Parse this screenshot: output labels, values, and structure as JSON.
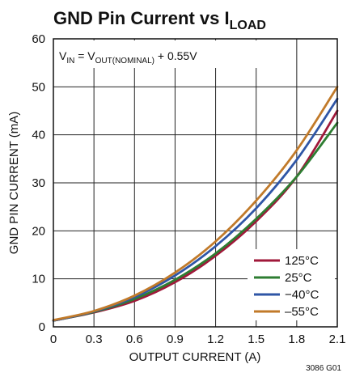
{
  "chart_data": {
    "type": "line",
    "title": "GND Pin Current vs I",
    "title_sub": "LOAD",
    "annotation": {
      "v": "V",
      "v_sub": "IN",
      "eq": " = V",
      "vout_sub": "OUT(NOMINAL)",
      "rest": " + 0.55V"
    },
    "xlabel": "OUTPUT CURRENT (A)",
    "ylabel": "GND PIN CURRENT (mA)",
    "xlim": [
      0,
      2.1
    ],
    "ylim": [
      0,
      60
    ],
    "xticks": [
      0,
      0.3,
      0.6,
      0.9,
      1.2,
      1.5,
      1.8,
      2.1
    ],
    "xtick_labels": [
      "0",
      "0.3",
      "0.6",
      "0.9",
      "1.2",
      "1.5",
      "1.8",
      "2.1"
    ],
    "yticks": [
      0,
      10,
      20,
      30,
      40,
      50,
      60
    ],
    "ytick_labels": [
      "0",
      "10",
      "20",
      "30",
      "40",
      "50",
      "60"
    ],
    "grid": true,
    "legend_position": "bottom-right",
    "figure_id": "3086 G01",
    "series": [
      {
        "name": "125°C",
        "color": "#a0183a",
        "x": [
          0,
          0.3,
          0.6,
          0.9,
          1.2,
          1.5,
          1.8,
          2.1
        ],
        "y": [
          1.3,
          3.0,
          5.4,
          9.3,
          14.8,
          22.0,
          31.3,
          45.0
        ]
      },
      {
        "name": "25°C",
        "color": "#2e7d32",
        "x": [
          0,
          0.3,
          0.6,
          0.9,
          1.2,
          1.5,
          1.8,
          2.1
        ],
        "y": [
          1.3,
          3.1,
          5.8,
          9.8,
          15.3,
          22.5,
          31.3,
          42.5
        ]
      },
      {
        "name": "−40°C",
        "color": "#2f56a6",
        "x": [
          0,
          0.3,
          0.6,
          0.9,
          1.2,
          1.5,
          1.8,
          2.1
        ],
        "y": [
          1.3,
          3.2,
          6.2,
          10.7,
          16.8,
          24.7,
          34.8,
          47.5
        ]
      },
      {
        "name": "–55°C",
        "color": "#c17a2a",
        "x": [
          0,
          0.3,
          0.6,
          0.9,
          1.2,
          1.5,
          1.8,
          2.1
        ],
        "y": [
          1.4,
          3.3,
          6.5,
          11.3,
          17.8,
          26.3,
          36.8,
          50.0
        ]
      }
    ]
  }
}
